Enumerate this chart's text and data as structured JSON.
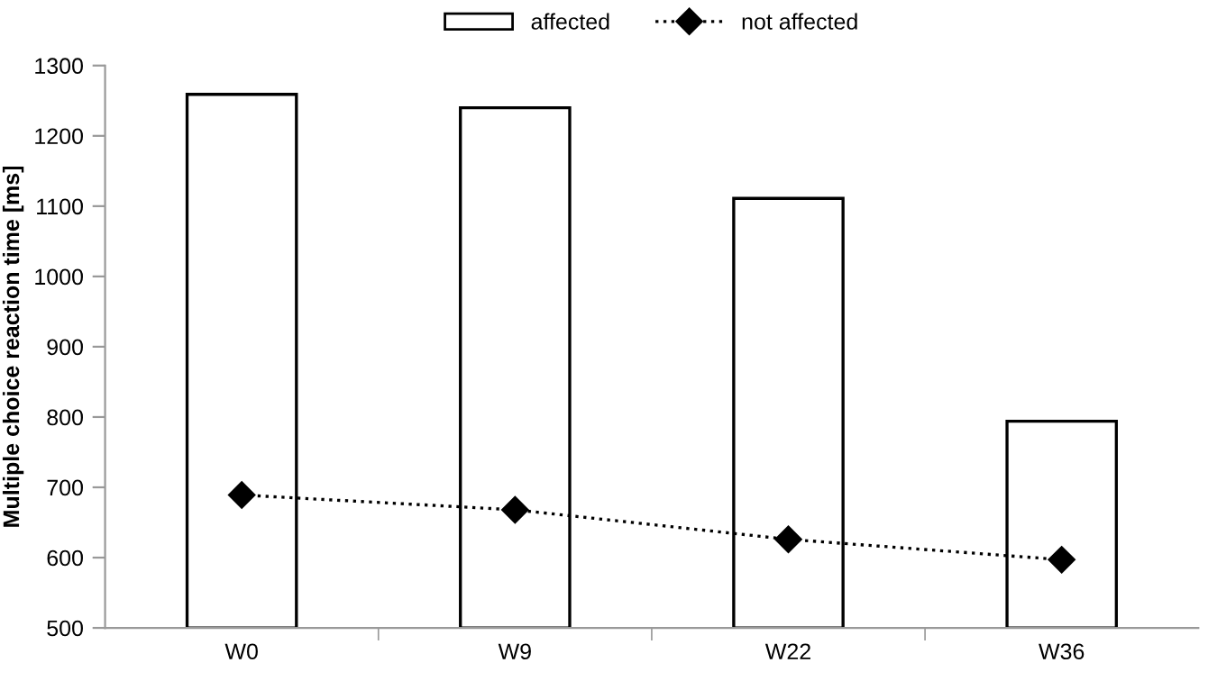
{
  "chart_data": {
    "type": "bar",
    "ylabel": "Multiple choice reaction time [ms]",
    "categories": [
      "W0",
      "W9",
      "W22",
      "W36"
    ],
    "series": [
      {
        "name": "affected",
        "color": "#ffffff",
        "values": [
          1259,
          1240,
          1111,
          794
        ]
      },
      {
        "name": "not affected",
        "type": "line",
        "color": "#000000",
        "values": [
          689,
          668,
          626,
          597
        ],
        "marker": "diamond",
        "line_style": "dotted"
      }
    ],
    "ylim": [
      500,
      1300
    ],
    "yticks": [
      500,
      600,
      700,
      800,
      900,
      1000,
      1100,
      1200,
      1300
    ],
    "grid": false,
    "legend": "top"
  }
}
